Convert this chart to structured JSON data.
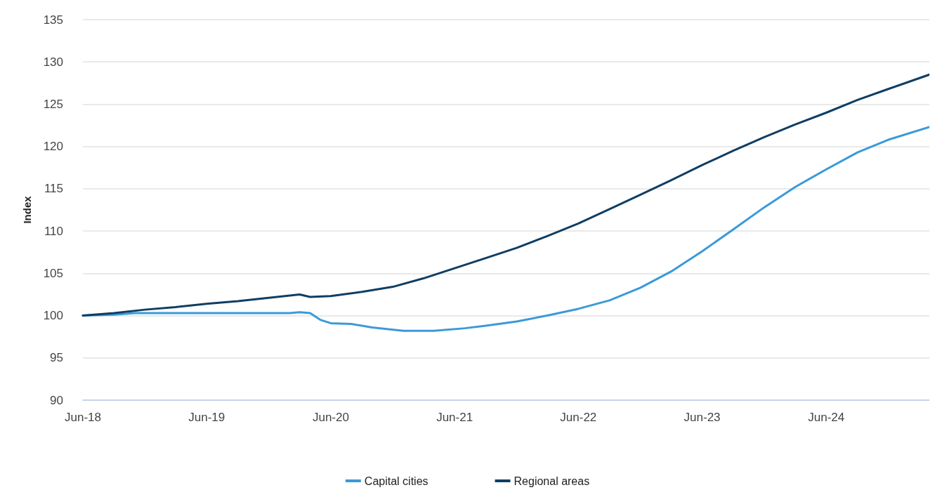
{
  "chart_data": {
    "type": "line",
    "ylabel": "Index",
    "xlim": [
      "2018-06",
      "2025-04"
    ],
    "ylim": [
      90,
      135
    ],
    "yticks": [
      90,
      95,
      100,
      105,
      110,
      115,
      120,
      125,
      130,
      135
    ],
    "xticks": [
      {
        "value": "2018-06",
        "label": "Jun-18"
      },
      {
        "value": "2019-06",
        "label": "Jun-19"
      },
      {
        "value": "2020-06",
        "label": "Jun-20"
      },
      {
        "value": "2021-06",
        "label": "Jun-21"
      },
      {
        "value": "2022-06",
        "label": "Jun-22"
      },
      {
        "value": "2023-06",
        "label": "Jun-23"
      },
      {
        "value": "2024-06",
        "label": "Jun-24"
      }
    ],
    "grid": "y",
    "legend": "bottom",
    "marker": "none",
    "line_style": "solid",
    "series": [
      {
        "name": "Capital cities",
        "color": "#3a9ad9",
        "x": [
          "2018-06",
          "2018-09",
          "2018-11",
          "2019-06",
          "2020-02",
          "2020-03",
          "2020-04",
          "2020-05",
          "2020-06",
          "2020-08",
          "2020-10",
          "2021-01",
          "2021-04",
          "2021-07",
          "2021-09",
          "2021-12",
          "2022-03",
          "2022-06",
          "2022-09",
          "2022-12",
          "2023-03",
          "2023-06",
          "2023-09",
          "2023-12",
          "2024-03",
          "2024-06",
          "2024-09",
          "2024-12",
          "2025-04"
        ],
        "values": [
          100.0,
          100.1,
          100.3,
          100.3,
          100.3,
          100.4,
          100.3,
          99.5,
          99.1,
          99.0,
          98.6,
          98.2,
          98.2,
          98.5,
          98.8,
          99.3,
          100.0,
          100.8,
          101.8,
          103.3,
          105.2,
          107.6,
          110.2,
          112.8,
          115.2,
          117.3,
          119.3,
          120.8,
          122.3
        ]
      },
      {
        "name": "Regional areas",
        "color": "#0f3e64",
        "x": [
          "2018-06",
          "2018-09",
          "2018-12",
          "2019-03",
          "2019-06",
          "2019-09",
          "2019-12",
          "2020-03",
          "2020-04",
          "2020-06",
          "2020-09",
          "2020-12",
          "2021-03",
          "2021-06",
          "2021-09",
          "2021-12",
          "2022-03",
          "2022-06",
          "2022-09",
          "2022-12",
          "2023-03",
          "2023-06",
          "2023-09",
          "2023-12",
          "2024-03",
          "2024-06",
          "2024-09",
          "2024-12",
          "2025-04"
        ],
        "values": [
          100.0,
          100.3,
          100.7,
          101.0,
          101.4,
          101.7,
          102.1,
          102.5,
          102.2,
          102.3,
          102.8,
          103.4,
          104.4,
          105.6,
          106.8,
          108.0,
          109.4,
          110.9,
          112.6,
          114.3,
          116.0,
          117.8,
          119.5,
          121.1,
          122.6,
          124.0,
          125.5,
          126.8,
          128.5
        ]
      }
    ]
  }
}
